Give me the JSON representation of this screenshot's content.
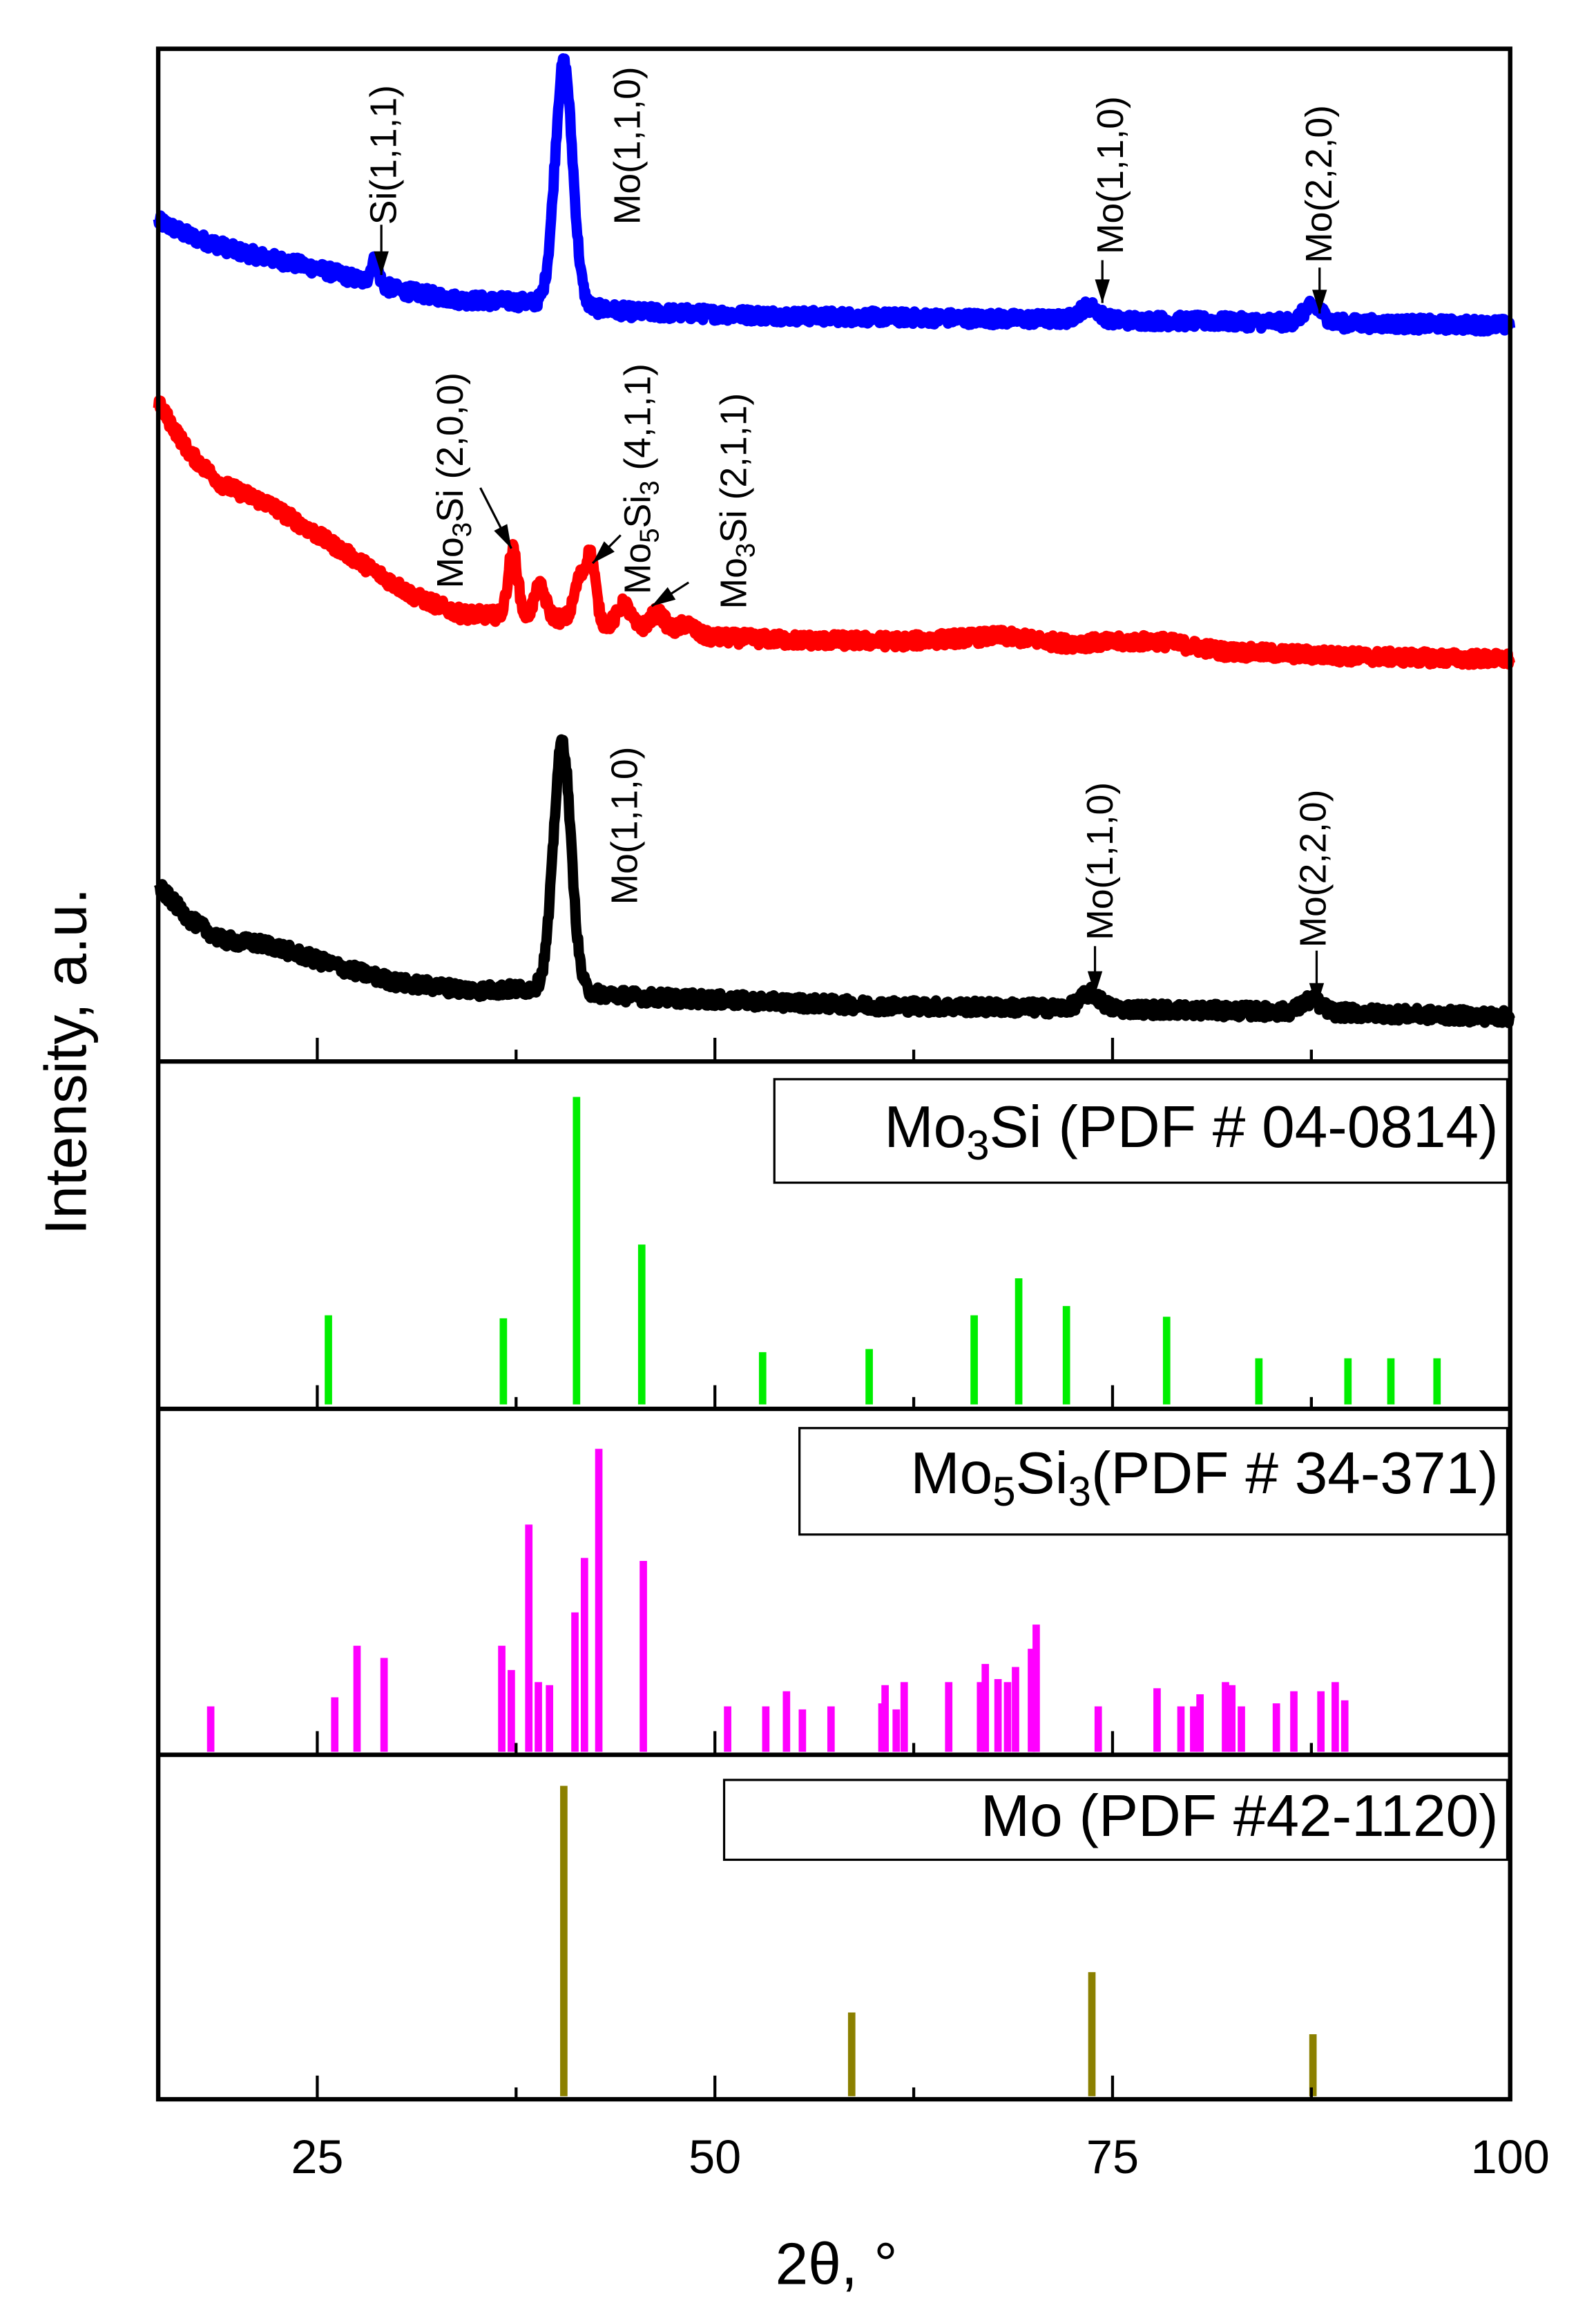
{
  "chart_data": {
    "type": "line",
    "xlabel": "2θ, °",
    "ylabel": "Intensity, a.u.",
    "xlim": [
      15,
      100
    ],
    "xticks": [
      25,
      50,
      75,
      100
    ],
    "minor_xticks": [
      37.5,
      62.5,
      87.5
    ],
    "grid": false,
    "traces": [
      {
        "name": "blue pattern",
        "color": "#0000ff",
        "background": [
          [
            15,
            83
          ],
          [
            17,
            81.5
          ],
          [
            20,
            80
          ],
          [
            25,
            78.3
          ],
          [
            30,
            76.2
          ],
          [
            34,
            75.2
          ],
          [
            38,
            75
          ],
          [
            45,
            74
          ],
          [
            55,
            73.6
          ],
          [
            70,
            73.3
          ],
          [
            85,
            73
          ],
          [
            100,
            72.7
          ]
        ],
        "peaks": [
          [
            28.6,
            2.2,
            0.25
          ],
          [
            40.5,
            24,
            0.55
          ],
          [
            73.5,
            1.3,
            0.6
          ],
          [
            87.6,
            1.6,
            0.6
          ]
        ]
      },
      {
        "name": "red pattern",
        "color": "#ff0000",
        "background": [
          [
            15,
            65
          ],
          [
            17,
            60
          ],
          [
            19,
            57
          ],
          [
            22,
            55
          ],
          [
            25,
            52
          ],
          [
            28,
            49
          ],
          [
            31,
            46
          ],
          [
            34,
            44.2
          ],
          [
            37,
            44
          ],
          [
            40,
            43.8
          ],
          [
            44,
            43
          ],
          [
            48,
            42
          ],
          [
            55,
            41.6
          ],
          [
            62,
            41.5
          ],
          [
            68,
            42
          ],
          [
            72,
            41.3
          ],
          [
            78,
            41.5
          ],
          [
            82,
            40.5
          ],
          [
            90,
            40
          ],
          [
            100,
            39.7
          ]
        ],
        "peaks": [
          [
            37.3,
            6.5,
            0.3
          ],
          [
            39.0,
            3,
            0.35
          ],
          [
            41.5,
            4,
            0.35
          ],
          [
            42.2,
            6.2,
            0.3
          ],
          [
            44.3,
            2.2,
            0.4
          ],
          [
            46.4,
            1.8,
            0.5
          ],
          [
            48.2,
            1.2,
            0.5
          ]
        ]
      },
      {
        "name": "black pattern",
        "color": "#000000",
        "background": [
          [
            15,
            17.3
          ],
          [
            17,
            14
          ],
          [
            19,
            12
          ],
          [
            22,
            11.5
          ],
          [
            23,
            11
          ],
          [
            26,
            9.5
          ],
          [
            30,
            7.8
          ],
          [
            35,
            7
          ],
          [
            39,
            7.2
          ],
          [
            45,
            6.4
          ],
          [
            60,
            5.5
          ],
          [
            75,
            5.2
          ],
          [
            90,
            4.8
          ],
          [
            100,
            4.4
          ]
        ],
        "peaks": [
          [
            40.4,
            24.5,
            0.55
          ],
          [
            73.6,
            1.5,
            0.6
          ],
          [
            87.5,
            1.2,
            0.6
          ]
        ]
      }
    ],
    "annotations": [
      {
        "trace": "blue pattern",
        "parts": [
          [
            "Si(1,1,1)",
            ""
          ]
        ],
        "arrow_x": 28.6
      },
      {
        "trace": "blue pattern",
        "parts": [
          [
            "Mo(1,1,0)",
            ""
          ]
        ],
        "arrow_x": null
      },
      {
        "trace": "blue pattern",
        "parts": [
          [
            "Mo(1,1,0)",
            ""
          ]
        ],
        "arrow_x": 73.5
      },
      {
        "trace": "blue pattern",
        "parts": [
          [
            "Mo(2,2,0)",
            ""
          ]
        ],
        "arrow_x": 87.6
      },
      {
        "trace": "red pattern",
        "parts": [
          [
            "Mo",
            ""
          ],
          [
            "3",
            "sub"
          ],
          [
            "Si (2,0,0)",
            ""
          ]
        ],
        "arrow_x": 37.3
      },
      {
        "trace": "red pattern",
        "parts": [
          [
            "Mo",
            ""
          ],
          [
            "5",
            "sub"
          ],
          [
            "Si",
            ""
          ],
          [
            "3",
            "sub"
          ],
          [
            " (4,1,1)",
            ""
          ]
        ],
        "arrow_x": 42.2
      },
      {
        "trace": "red pattern",
        "parts": [
          [
            "Mo",
            ""
          ],
          [
            "3",
            "sub"
          ],
          [
            "Si (2,1,1)",
            ""
          ]
        ],
        "arrow_x": 44.3
      },
      {
        "trace": "black pattern",
        "parts": [
          [
            "Mo(1,1,0)",
            ""
          ]
        ],
        "arrow_x": null
      },
      {
        "trace": "black pattern",
        "parts": [
          [
            "Mo(1,1,0)",
            ""
          ]
        ],
        "arrow_x": 73.6
      },
      {
        "trace": "black pattern",
        "parts": [
          [
            "Mo(2,2,0)",
            ""
          ]
        ],
        "arrow_x": 87.5
      }
    ],
    "references": [
      {
        "name": "Mo3Si",
        "legend_parts": [
          [
            "Mo",
            ""
          ],
          [
            "3",
            "sub"
          ],
          [
            "Si (PDF # 04-0814)",
            ""
          ]
        ],
        "color": "#00ee00",
        "sticks": [
          [
            25.7,
            29
          ],
          [
            36.7,
            28
          ],
          [
            41.3,
            100
          ],
          [
            45.4,
            52
          ],
          [
            53.0,
            17
          ],
          [
            59.7,
            18
          ],
          [
            66.3,
            29
          ],
          [
            69.1,
            41
          ],
          [
            72.1,
            32
          ],
          [
            78.4,
            28.5
          ],
          [
            84.2,
            15
          ],
          [
            89.8,
            15
          ],
          [
            92.5,
            15
          ],
          [
            95.4,
            15
          ]
        ]
      },
      {
        "name": "Mo5Si3",
        "legend_parts": [
          [
            "Mo",
            ""
          ],
          [
            "5",
            "sub"
          ],
          [
            "Si",
            ""
          ],
          [
            "3",
            "sub"
          ],
          [
            "(PDF # 34-371)",
            ""
          ]
        ],
        "color": "#ff00ff",
        "sticks": [
          [
            18.3,
            15
          ],
          [
            26.1,
            18
          ],
          [
            27.5,
            35
          ],
          [
            29.2,
            31
          ],
          [
            36.6,
            35
          ],
          [
            37.2,
            27
          ],
          [
            38.3,
            75
          ],
          [
            38.9,
            23
          ],
          [
            39.6,
            22
          ],
          [
            41.2,
            46
          ],
          [
            41.8,
            64
          ],
          [
            42.7,
            100
          ],
          [
            45.5,
            63
          ],
          [
            50.8,
            15
          ],
          [
            53.2,
            15
          ],
          [
            54.5,
            20
          ],
          [
            55.5,
            14
          ],
          [
            57.3,
            15
          ],
          [
            60.5,
            16
          ],
          [
            60.7,
            22
          ],
          [
            61.4,
            14
          ],
          [
            61.9,
            23
          ],
          [
            64.7,
            23
          ],
          [
            66.7,
            23
          ],
          [
            67.0,
            29
          ],
          [
            67.8,
            24
          ],
          [
            68.4,
            23
          ],
          [
            68.9,
            28
          ],
          [
            69.9,
            34
          ],
          [
            70.2,
            42
          ],
          [
            74.1,
            15
          ],
          [
            77.8,
            21
          ],
          [
            79.3,
            15
          ],
          [
            80.1,
            15
          ],
          [
            80.5,
            19
          ],
          [
            82.1,
            23
          ],
          [
            82.5,
            22
          ],
          [
            83.1,
            15
          ],
          [
            85.3,
            16
          ],
          [
            86.4,
            20
          ],
          [
            88.1,
            20
          ],
          [
            89.0,
            23
          ],
          [
            89.6,
            17
          ]
        ]
      },
      {
        "name": "Mo",
        "legend_parts": [
          [
            "Mo (PDF #42-1120)",
            ""
          ]
        ],
        "color": "#8b8000",
        "sticks": [
          [
            40.5,
            100
          ],
          [
            58.6,
            27
          ],
          [
            73.7,
            40
          ],
          [
            87.6,
            20
          ]
        ]
      }
    ]
  }
}
